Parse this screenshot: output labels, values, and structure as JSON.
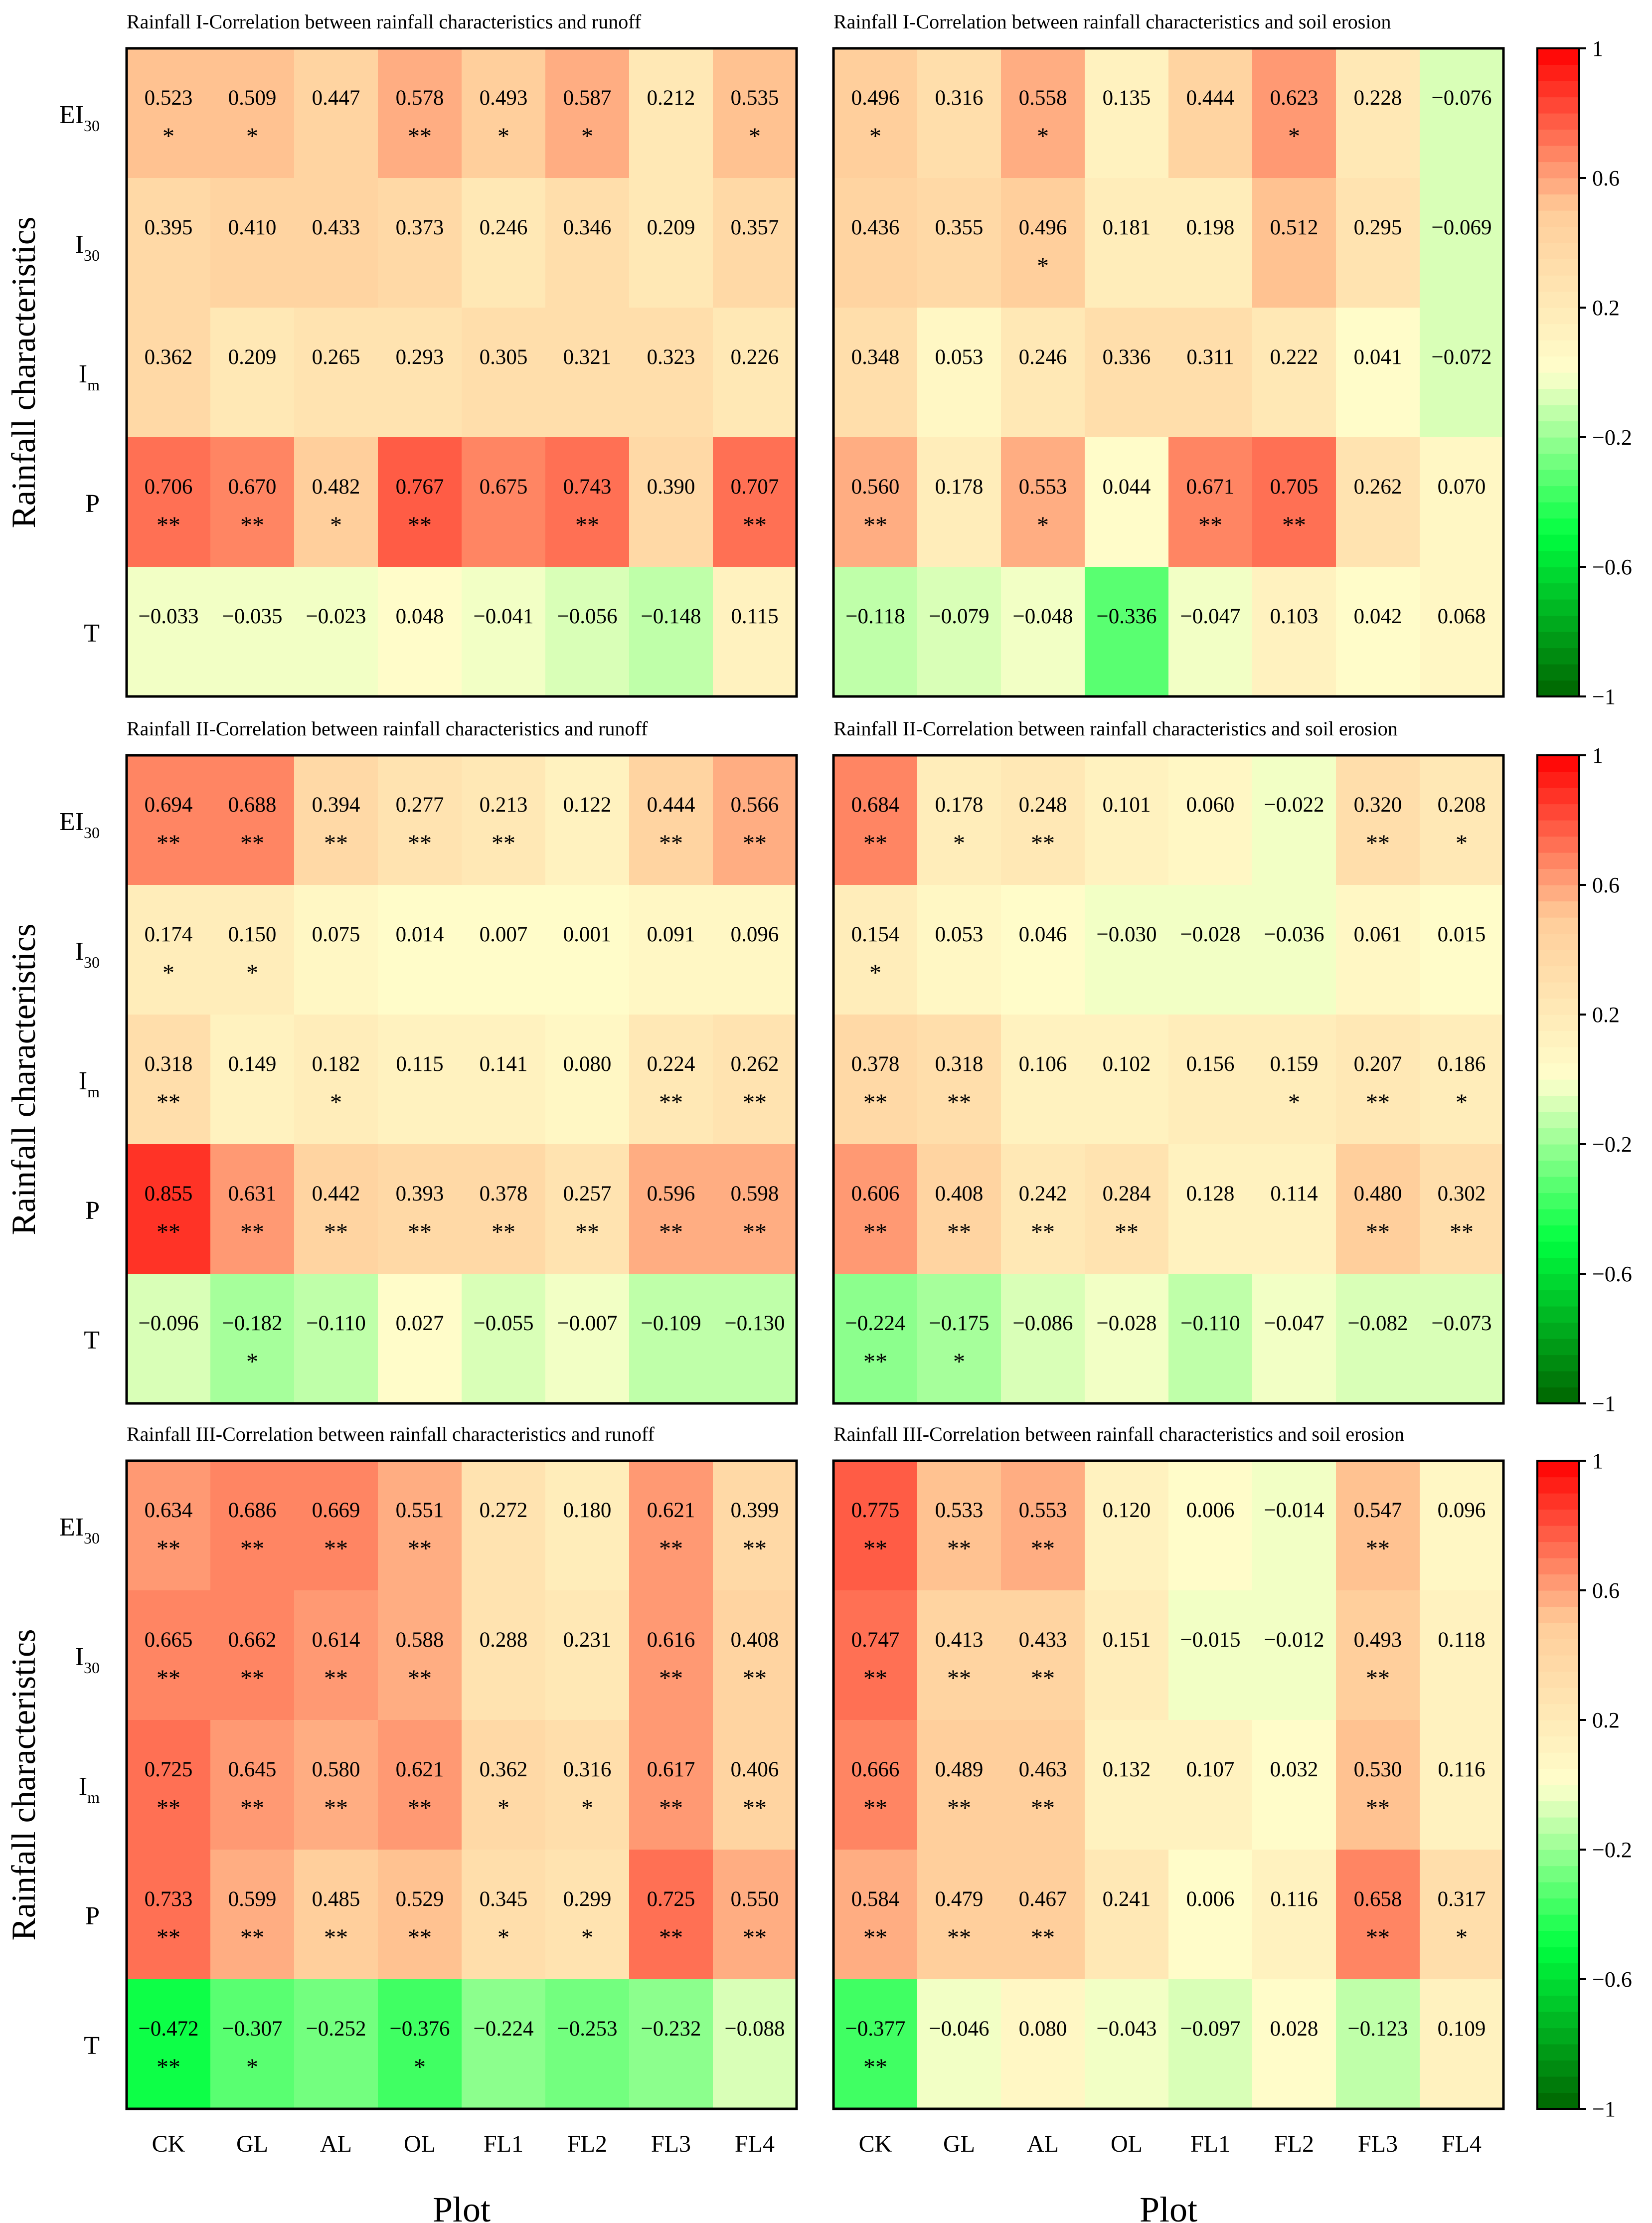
{
  "chart_data": {
    "type": "heatmap",
    "ylabel": "Rainfall characteristics",
    "xlabel": "Plot",
    "rows": [
      "EI30",
      "I30",
      "Im",
      "P",
      "T"
    ],
    "row_labels": [
      {
        "base": "EI",
        "sub": "30"
      },
      {
        "base": "I",
        "sub": "30"
      },
      {
        "base": "I",
        "sub": "m"
      },
      {
        "base": "P",
        "sub": ""
      },
      {
        "base": "T",
        "sub": ""
      }
    ],
    "columns": [
      "CK",
      "GL",
      "AL",
      "OL",
      "FL1",
      "FL2",
      "FL3",
      "FL4"
    ],
    "colorbar": {
      "range": [
        -1,
        1
      ],
      "ticks": [
        "1",
        "0.6",
        "0.2",
        "−0.2",
        "−0.6",
        "−1"
      ],
      "tick_values": [
        1,
        0.6,
        0.2,
        -0.2,
        -0.6,
        -1
      ],
      "levels": 40,
      "colors": [
        "#006400",
        "#00FF40",
        "#FFFFCC",
        "#FFCC99",
        "#FF0000"
      ]
    },
    "panels": [
      {
        "title": "Rainfall I-Correlation between rainfall characteristics and runoff",
        "values": [
          [
            0.523,
            0.509,
            0.447,
            0.578,
            0.493,
            0.587,
            0.212,
            0.535
          ],
          [
            0.395,
            0.41,
            0.433,
            0.373,
            0.246,
            0.346,
            0.209,
            0.357
          ],
          [
            0.362,
            0.209,
            0.265,
            0.293,
            0.305,
            0.321,
            0.323,
            0.226
          ],
          [
            0.706,
            0.67,
            0.482,
            0.767,
            0.675,
            0.743,
            0.39,
            0.707
          ],
          [
            -0.033,
            -0.035,
            -0.023,
            0.048,
            -0.041,
            -0.056,
            -0.148,
            0.115
          ]
        ],
        "labels": [
          [
            "0.523",
            "0.509",
            "0.447",
            "0.578",
            "0.493",
            "0.587",
            "0.212",
            "0.535"
          ],
          [
            "0.395",
            "0.410",
            "0.433",
            "0.373",
            "0.246",
            "0.346",
            "0.209",
            "0.357"
          ],
          [
            "0.362",
            "0.209",
            "0.265",
            "0.293",
            "0.305",
            "0.321",
            "0.323",
            "0.226"
          ],
          [
            "0.706",
            "0.670",
            "0.482",
            "0.767",
            "0.675",
            "0.743",
            "0.390",
            "0.707"
          ],
          [
            "−0.033",
            "−0.035",
            "−0.023",
            "0.048",
            "−0.041",
            "−0.056",
            "−0.148",
            "0.115"
          ]
        ],
        "significance": [
          [
            "*",
            "*",
            "",
            "**",
            "*",
            "*",
            "",
            "*"
          ],
          [
            "",
            "",
            "",
            "",
            "",
            "",
            "",
            ""
          ],
          [
            "",
            "",
            "",
            "",
            "",
            "",
            "",
            ""
          ],
          [
            "**",
            "**",
            "*",
            "**",
            "",
            "**",
            "",
            "**"
          ],
          [
            "",
            "",
            "",
            "",
            "",
            "",
            "",
            ""
          ]
        ]
      },
      {
        "title": "Rainfall I-Correlation between rainfall characteristics and soil erosion",
        "values": [
          [
            0.496,
            0.316,
            0.558,
            0.135,
            0.444,
            0.623,
            0.228,
            -0.076
          ],
          [
            0.436,
            0.355,
            0.496,
            0.181,
            0.198,
            0.512,
            0.295,
            -0.069
          ],
          [
            0.348,
            0.053,
            0.246,
            0.336,
            0.311,
            0.222,
            0.041,
            -0.072
          ],
          [
            0.56,
            0.178,
            0.553,
            0.044,
            0.671,
            0.705,
            0.262,
            0.07
          ],
          [
            -0.118,
            -0.079,
            -0.048,
            -0.336,
            -0.047,
            0.103,
            0.042,
            0.068
          ]
        ],
        "labels": [
          [
            "0.496",
            "0.316",
            "0.558",
            "0.135",
            "0.444",
            "0.623",
            "0.228",
            "−0.076"
          ],
          [
            "0.436",
            "0.355",
            "0.496",
            "0.181",
            "0.198",
            "0.512",
            "0.295",
            "−0.069"
          ],
          [
            "0.348",
            "0.053",
            "0.246",
            "0.336",
            "0.311",
            "0.222",
            "0.041",
            "−0.072"
          ],
          [
            "0.560",
            "0.178",
            "0.553",
            "0.044",
            "0.671",
            "0.705",
            "0.262",
            "0.070"
          ],
          [
            "−0.118",
            "−0.079",
            "−0.048",
            "−0.336",
            "−0.047",
            "0.103",
            "0.042",
            "0.068"
          ]
        ],
        "significance": [
          [
            "*",
            "",
            "*",
            "",
            "",
            "*",
            "",
            ""
          ],
          [
            "",
            "",
            "*",
            "",
            "",
            "",
            "",
            ""
          ],
          [
            "",
            "",
            "",
            "",
            "",
            "",
            "",
            ""
          ],
          [
            "**",
            "",
            "*",
            "",
            "**",
            "**",
            "",
            ""
          ],
          [
            "",
            "",
            "",
            "",
            "",
            "",
            "",
            ""
          ]
        ]
      },
      {
        "title": "Rainfall II-Correlation between rainfall characteristics and runoff",
        "values": [
          [
            0.694,
            0.688,
            0.394,
            0.277,
            0.213,
            0.122,
            0.444,
            0.566
          ],
          [
            0.174,
            0.15,
            0.075,
            0.014,
            0.007,
            0.001,
            0.091,
            0.096
          ],
          [
            0.318,
            0.149,
            0.182,
            0.115,
            0.141,
            0.08,
            0.224,
            0.262
          ],
          [
            0.855,
            0.631,
            0.442,
            0.393,
            0.378,
            0.257,
            0.596,
            0.598
          ],
          [
            -0.096,
            -0.182,
            -0.11,
            0.027,
            -0.055,
            -0.007,
            -0.109,
            -0.13
          ]
        ],
        "labels": [
          [
            "0.694",
            "0.688",
            "0.394",
            "0.277",
            "0.213",
            "0.122",
            "0.444",
            "0.566"
          ],
          [
            "0.174",
            "0.150",
            "0.075",
            "0.014",
            "0.007",
            "0.001",
            "0.091",
            "0.096"
          ],
          [
            "0.318",
            "0.149",
            "0.182",
            "0.115",
            "0.141",
            "0.080",
            "0.224",
            "0.262"
          ],
          [
            "0.855",
            "0.631",
            "0.442",
            "0.393",
            "0.378",
            "0.257",
            "0.596",
            "0.598"
          ],
          [
            "−0.096",
            "−0.182",
            "−0.110",
            "0.027",
            "−0.055",
            "−0.007",
            "−0.109",
            "−0.130"
          ]
        ],
        "significance": [
          [
            "**",
            "**",
            "**",
            "**",
            "**",
            "",
            "**",
            "**"
          ],
          [
            "*",
            "*",
            "",
            "",
            "",
            "",
            "",
            ""
          ],
          [
            "**",
            "",
            "*",
            "",
            "",
            "",
            "**",
            "**"
          ],
          [
            "**",
            "**",
            "**",
            "**",
            "**",
            "**",
            "**",
            "**"
          ],
          [
            "",
            "*",
            "",
            "",
            "",
            "",
            "",
            ""
          ]
        ]
      },
      {
        "title": "Rainfall II-Correlation between rainfall characteristics and soil erosion",
        "values": [
          [
            0.684,
            0.178,
            0.248,
            0.101,
            0.06,
            -0.022,
            0.32,
            0.208
          ],
          [
            0.154,
            0.053,
            0.046,
            -0.03,
            -0.028,
            -0.036,
            0.061,
            0.015
          ],
          [
            0.378,
            0.318,
            0.106,
            0.102,
            0.156,
            0.159,
            0.207,
            0.186
          ],
          [
            0.606,
            0.408,
            0.242,
            0.284,
            0.128,
            0.114,
            0.48,
            0.302
          ],
          [
            -0.224,
            -0.175,
            -0.086,
            -0.028,
            -0.11,
            -0.047,
            -0.082,
            -0.073
          ]
        ],
        "labels": [
          [
            "0.684",
            "0.178",
            "0.248",
            "0.101",
            "0.060",
            "−0.022",
            "0.320",
            "0.208"
          ],
          [
            "0.154",
            "0.053",
            "0.046",
            "−0.030",
            "−0.028",
            "−0.036",
            "0.061",
            "0.015"
          ],
          [
            "0.378",
            "0.318",
            "0.106",
            "0.102",
            "0.156",
            "0.159",
            "0.207",
            "0.186"
          ],
          [
            "0.606",
            "0.408",
            "0.242",
            "0.284",
            "0.128",
            "0.114",
            "0.480",
            "0.302"
          ],
          [
            "−0.224",
            "−0.175",
            "−0.086",
            "−0.028",
            "−0.110",
            "−0.047",
            "−0.082",
            "−0.073"
          ]
        ],
        "significance": [
          [
            "**",
            "*",
            "**",
            "",
            "",
            "",
            "**",
            "*"
          ],
          [
            "*",
            "",
            "",
            "",
            "",
            "",
            "",
            ""
          ],
          [
            "**",
            "**",
            "",
            "",
            "",
            "*",
            "**",
            "*"
          ],
          [
            "**",
            "**",
            "**",
            "**",
            "",
            "",
            "**",
            "**"
          ],
          [
            "**",
            "*",
            "",
            "",
            "",
            "",
            "",
            ""
          ]
        ]
      },
      {
        "title": "Rainfall III-Correlation between rainfall characteristics and runoff",
        "values": [
          [
            0.634,
            0.686,
            0.669,
            0.551,
            0.272,
            0.18,
            0.621,
            0.399
          ],
          [
            0.665,
            0.662,
            0.614,
            0.588,
            0.288,
            0.231,
            0.616,
            0.408
          ],
          [
            0.725,
            0.645,
            0.58,
            0.621,
            0.362,
            0.316,
            0.617,
            0.406
          ],
          [
            0.733,
            0.599,
            0.485,
            0.529,
            0.345,
            0.299,
            0.725,
            0.55
          ],
          [
            -0.472,
            -0.307,
            -0.252,
            -0.376,
            -0.224,
            -0.253,
            -0.232,
            -0.088
          ]
        ],
        "labels": [
          [
            "0.634",
            "0.686",
            "0.669",
            "0.551",
            "0.272",
            "0.180",
            "0.621",
            "0.399"
          ],
          [
            "0.665",
            "0.662",
            "0.614",
            "0.588",
            "0.288",
            "0.231",
            "0.616",
            "0.408"
          ],
          [
            "0.725",
            "0.645",
            "0.580",
            "0.621",
            "0.362",
            "0.316",
            "0.617",
            "0.406"
          ],
          [
            "0.733",
            "0.599",
            "0.485",
            "0.529",
            "0.345",
            "0.299",
            "0.725",
            "0.550"
          ],
          [
            "−0.472",
            "−0.307",
            "−0.252",
            "−0.376",
            "−0.224",
            "−0.253",
            "−0.232",
            "−0.088"
          ]
        ],
        "significance": [
          [
            "**",
            "**",
            "**",
            "**",
            "",
            "",
            "**",
            "**"
          ],
          [
            "**",
            "**",
            "**",
            "**",
            "",
            "",
            "**",
            "**"
          ],
          [
            "**",
            "**",
            "**",
            "**",
            "*",
            "*",
            "**",
            "**"
          ],
          [
            "**",
            "**",
            "**",
            "**",
            "*",
            "*",
            "**",
            "**"
          ],
          [
            "**",
            "*",
            "",
            "*",
            "",
            "",
            "",
            ""
          ]
        ]
      },
      {
        "title": "Rainfall III-Correlation between rainfall characteristics and soil erosion",
        "values": [
          [
            0.775,
            0.533,
            0.553,
            0.12,
            0.006,
            -0.014,
            0.547,
            0.096
          ],
          [
            0.747,
            0.413,
            0.433,
            0.151,
            -0.015,
            -0.012,
            0.493,
            0.118
          ],
          [
            0.666,
            0.489,
            0.463,
            0.132,
            0.107,
            0.032,
            0.53,
            0.116
          ],
          [
            0.584,
            0.479,
            0.467,
            0.241,
            0.006,
            0.116,
            0.658,
            0.317
          ],
          [
            -0.377,
            -0.046,
            0.08,
            -0.043,
            -0.097,
            0.028,
            -0.123,
            0.109
          ]
        ],
        "labels": [
          [
            "0.775",
            "0.533",
            "0.553",
            "0.120",
            "0.006",
            "−0.014",
            "0.547",
            "0.096"
          ],
          [
            "0.747",
            "0.413",
            "0.433",
            "0.151",
            "−0.015",
            "−0.012",
            "0.493",
            "0.118"
          ],
          [
            "0.666",
            "0.489",
            "0.463",
            "0.132",
            "0.107",
            "0.032",
            "0.530",
            "0.116"
          ],
          [
            "0.584",
            "0.479",
            "0.467",
            "0.241",
            "0.006",
            "0.116",
            "0.658",
            "0.317"
          ],
          [
            "−0.377",
            "−0.046",
            "0.080",
            "−0.043",
            "−0.097",
            "0.028",
            "−0.123",
            "0.109"
          ]
        ],
        "significance": [
          [
            "**",
            "**",
            "**",
            "",
            "",
            "",
            "**",
            ""
          ],
          [
            "**",
            "**",
            "**",
            "",
            "",
            "",
            "**",
            ""
          ],
          [
            "**",
            "**",
            "**",
            "",
            "",
            "",
            "**",
            ""
          ],
          [
            "**",
            "**",
            "**",
            "",
            "",
            "",
            "**",
            "*"
          ],
          [
            "**",
            "",
            "",
            "",
            "",
            "",
            "",
            ""
          ]
        ]
      }
    ]
  }
}
